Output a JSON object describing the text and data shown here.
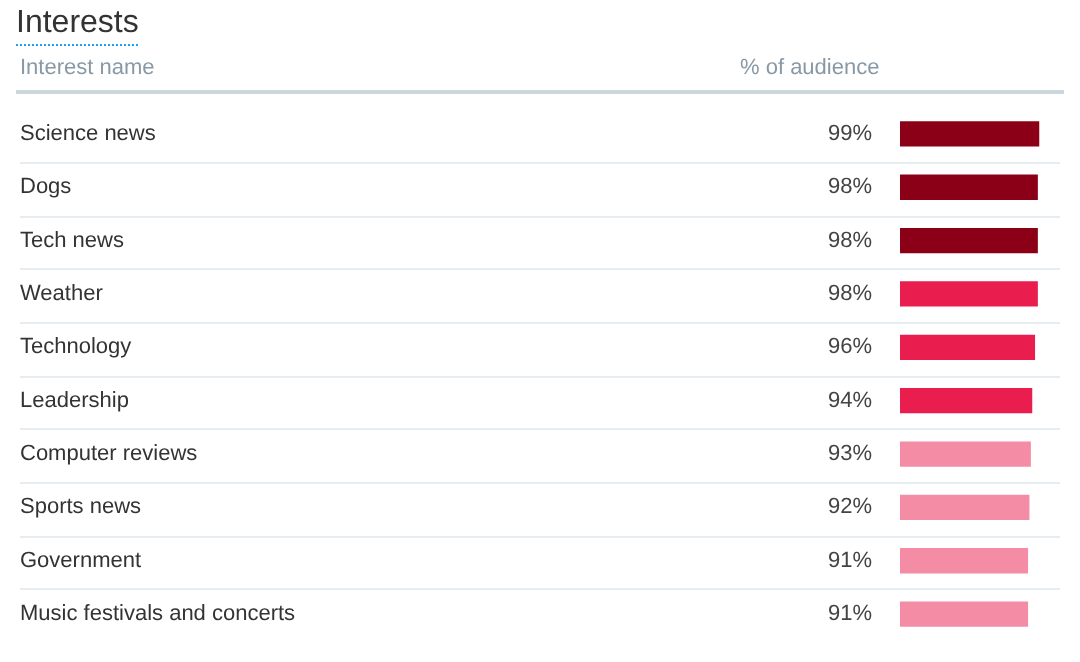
{
  "chart_data": {
    "type": "bar",
    "orientation": "horizontal",
    "title": "Interests",
    "ylabel": "Interest name",
    "xlabel": "% of audience",
    "categories": [
      "Science news",
      "Dogs",
      "Tech news",
      "Weather",
      "Technology",
      "Leadership",
      "Computer reviews",
      "Sports news",
      "Government",
      "Music festivals and concerts"
    ],
    "values": [
      99,
      98,
      98,
      98,
      96,
      94,
      93,
      92,
      91,
      91
    ],
    "colors": [
      "#8b0016",
      "#8b0016",
      "#8b0016",
      "#ea1d4f",
      "#ea1d4f",
      "#ea1d4f",
      "#f48ca6",
      "#f48ca6",
      "#f48ca6",
      "#f48ca6"
    ],
    "value_labels": [
      "99%",
      "98%",
      "98%",
      "98%",
      "96%",
      "94%",
      "93%",
      "92%",
      "91%",
      "91%"
    ],
    "xlim": [
      0,
      100
    ],
    "tick_labels": "y",
    "grid": "y",
    "legend": false
  }
}
